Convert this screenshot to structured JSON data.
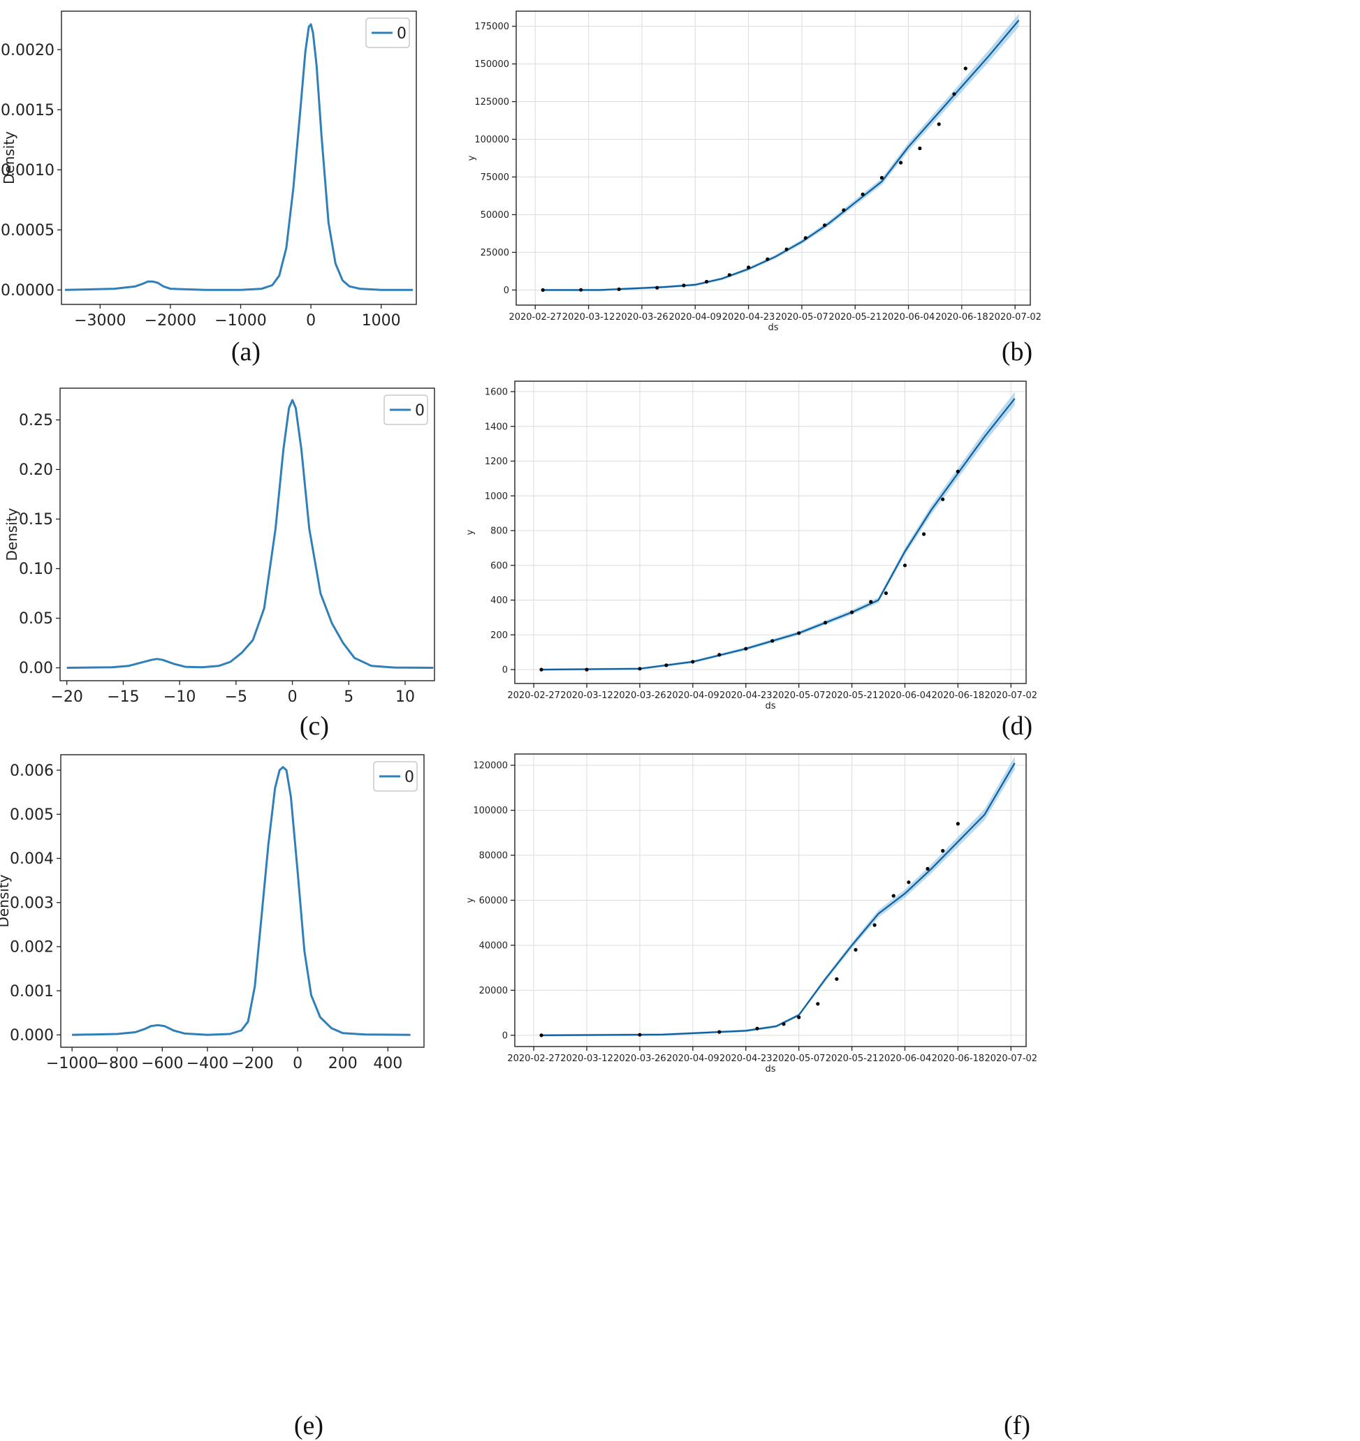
{
  "chart_data": [
    {
      "panel": "a",
      "type": "line",
      "caption": "(a)",
      "title": "",
      "xlabel": "",
      "ylabel": "Density",
      "xlim": [
        -3550,
        1500
      ],
      "ylim": [
        -0.00012,
        0.00232
      ],
      "xticks": [
        -3000,
        -2000,
        -1000,
        0,
        1000
      ],
      "xtick_labels": [
        "−3000",
        "−2000",
        "−1000",
        "0",
        "1000"
      ],
      "yticks": [
        0,
        0.0005,
        0.001,
        0.0015,
        0.002
      ],
      "ytick_labels": [
        "0.0000",
        "0.0005",
        "0.0010",
        "0.0015",
        "0.0020"
      ],
      "grid": false,
      "legend": "top-right",
      "series": [
        {
          "name": "0",
          "color": "#2f7fb8",
          "x": [
            -3500,
            -2800,
            -2500,
            -2400,
            -2320,
            -2250,
            -2180,
            -2100,
            -2000,
            -1500,
            -1000,
            -700,
            -550,
            -450,
            -350,
            -250,
            -150,
            -80,
            -30,
            0,
            30,
            80,
            150,
            250,
            350,
            450,
            550,
            700,
            1000,
            1450
          ],
          "y": [
            0,
            1e-05,
            3e-05,
            5e-05,
            7e-05,
            7e-05,
            6e-05,
            3e-05,
            1e-05,
            0,
            0,
            1e-05,
            4e-05,
            0.00012,
            0.00035,
            0.00085,
            0.0015,
            0.00198,
            0.00219,
            0.00221,
            0.00214,
            0.00187,
            0.00129,
            0.00056,
            0.00022,
            8e-05,
            3e-05,
            1e-05,
            0,
            0
          ]
        }
      ]
    },
    {
      "panel": "b",
      "type": "line",
      "caption": "(b)",
      "title": "",
      "xlabel": "ds",
      "ylabel": "y",
      "xlim": [
        "2020-02-22",
        "2020-07-06"
      ],
      "ylim": [
        -10000,
        185000
      ],
      "xticks": [
        "2020-02-27",
        "2020-03-12",
        "2020-03-26",
        "2020-04-09",
        "2020-04-23",
        "2020-05-07",
        "2020-05-21",
        "2020-06-04",
        "2020-06-18",
        "2020-07-02"
      ],
      "yticks": [
        0,
        25000,
        50000,
        75000,
        100000,
        125000,
        150000,
        175000
      ],
      "grid": true,
      "legend": "none",
      "forecast": {
        "color": "#0d5f9e",
        "band_color": "#9ccbe8",
        "x": [
          "2020-02-29",
          "2020-03-15",
          "2020-04-01",
          "2020-04-09",
          "2020-04-16",
          "2020-04-23",
          "2020-04-30",
          "2020-05-07",
          "2020-05-14",
          "2020-05-21",
          "2020-05-28",
          "2020-06-04",
          "2020-06-11",
          "2020-06-18",
          "2020-06-25",
          "2020-07-03"
        ],
        "y": [
          0,
          0,
          2000,
          3500,
          7500,
          14000,
          22000,
          32000,
          44000,
          58000,
          72000,
          95000,
          115000,
          135000,
          155000,
          179000
        ]
      },
      "observed": {
        "color": "#000000",
        "x": [
          "2020-02-29",
          "2020-03-10",
          "2020-03-20",
          "2020-03-30",
          "2020-04-06",
          "2020-04-12",
          "2020-04-18",
          "2020-04-23",
          "2020-04-28",
          "2020-05-03",
          "2020-05-08",
          "2020-05-13",
          "2020-05-18",
          "2020-05-23",
          "2020-05-28",
          "2020-06-02",
          "2020-06-07",
          "2020-06-12",
          "2020-06-16",
          "2020-06-19"
        ],
        "y": [
          0,
          100,
          500,
          1500,
          3000,
          5500,
          10000,
          15000,
          20500,
          27000,
          34500,
          43000,
          53000,
          63500,
          74500,
          84500,
          94000,
          110000,
          130000,
          147000
        ]
      }
    },
    {
      "panel": "c",
      "type": "line",
      "caption": "(c)",
      "title": "",
      "xlabel": "",
      "ylabel": "Density",
      "xlim": [
        -20.6,
        12.6
      ],
      "ylim": [
        -0.013,
        0.282
      ],
      "xticks": [
        -20,
        -15,
        -10,
        -5,
        0,
        5,
        10
      ],
      "xtick_labels": [
        "−20",
        "−15",
        "−10",
        "−5",
        "0",
        "5",
        "10"
      ],
      "yticks": [
        0,
        0.05,
        0.1,
        0.15,
        0.2,
        0.25
      ],
      "ytick_labels": [
        "0.00",
        "0.05",
        "0.10",
        "0.15",
        "0.20",
        "0.25"
      ],
      "grid": false,
      "legend": "top-right",
      "series": [
        {
          "name": "0",
          "color": "#2f7fb8",
          "x": [
            -20,
            -16,
            -14.5,
            -13.5,
            -12.5,
            -12,
            -11.5,
            -10.5,
            -9.5,
            -8,
            -6.5,
            -5.5,
            -4.5,
            -3.5,
            -2.5,
            -1.5,
            -0.8,
            -0.3,
            0,
            0.3,
            0.8,
            1.5,
            2.5,
            3.5,
            4.5,
            5.5,
            7,
            9,
            12.5
          ],
          "y": [
            0,
            0.0005,
            0.002,
            0.005,
            0.008,
            0.009,
            0.008,
            0.004,
            0.001,
            0.0005,
            0.002,
            0.006,
            0.015,
            0.028,
            0.06,
            0.14,
            0.22,
            0.262,
            0.27,
            0.262,
            0.22,
            0.14,
            0.075,
            0.045,
            0.025,
            0.01,
            0.002,
            0.0003,
            0
          ]
        }
      ]
    },
    {
      "panel": "d",
      "type": "line",
      "caption": "(d)",
      "title": "",
      "xlabel": "ds",
      "ylabel": "y",
      "xlim": [
        "2020-02-22",
        "2020-07-06"
      ],
      "ylim": [
        -80,
        1660
      ],
      "xticks": [
        "2020-02-27",
        "2020-03-12",
        "2020-03-26",
        "2020-04-09",
        "2020-04-23",
        "2020-05-07",
        "2020-05-21",
        "2020-06-04",
        "2020-06-18",
        "2020-07-02"
      ],
      "yticks": [
        0,
        200,
        400,
        600,
        800,
        1000,
        1200,
        1400,
        1600
      ],
      "grid": true,
      "legend": "none",
      "forecast": {
        "color": "#0d5f9e",
        "band_color": "#9ccbe8",
        "x": [
          "2020-02-29",
          "2020-03-26",
          "2020-04-09",
          "2020-04-23",
          "2020-05-07",
          "2020-05-21",
          "2020-05-28",
          "2020-06-04",
          "2020-06-11",
          "2020-06-18",
          "2020-06-25",
          "2020-07-03"
        ],
        "y": [
          0,
          5,
          45,
          120,
          210,
          330,
          400,
          680,
          920,
          1130,
          1340,
          1560
        ]
      },
      "observed": {
        "color": "#000000",
        "x": [
          "2020-02-29",
          "2020-03-12",
          "2020-03-26",
          "2020-04-02",
          "2020-04-09",
          "2020-04-16",
          "2020-04-23",
          "2020-04-30",
          "2020-05-07",
          "2020-05-14",
          "2020-05-21",
          "2020-05-26",
          "2020-05-30",
          "2020-06-04",
          "2020-06-09",
          "2020-06-14",
          "2020-06-18"
        ],
        "y": [
          0,
          0,
          5,
          25,
          45,
          85,
          120,
          165,
          210,
          270,
          330,
          390,
          440,
          600,
          780,
          980,
          1140
        ]
      }
    },
    {
      "panel": "e",
      "type": "line",
      "caption": "(e)",
      "title": "",
      "xlabel": "",
      "ylabel": "Density",
      "xlim": [
        -1050,
        560
      ],
      "ylim": [
        -0.00028,
        0.00635
      ],
      "xticks": [
        -1000,
        -800,
        -600,
        -400,
        -200,
        0,
        200,
        400
      ],
      "xtick_labels": [
        "−1000",
        "−800",
        "−600",
        "−400",
        "−200",
        "0",
        "200",
        "400"
      ],
      "yticks": [
        0,
        0.001,
        0.002,
        0.003,
        0.004,
        0.005,
        0.006
      ],
      "ytick_labels": [
        "0.000",
        "0.001",
        "0.002",
        "0.003",
        "0.004",
        "0.005",
        "0.006"
      ],
      "grid": false,
      "legend": "top-right",
      "series": [
        {
          "name": "0",
          "color": "#2f7fb8",
          "x": [
            -1000,
            -800,
            -720,
            -680,
            -650,
            -620,
            -590,
            -550,
            -500,
            -400,
            -300,
            -250,
            -220,
            -190,
            -160,
            -130,
            -100,
            -80,
            -65,
            -50,
            -30,
            0,
            30,
            60,
            100,
            150,
            200,
            300,
            500
          ],
          "y": [
            0,
            2e-05,
            6e-05,
            0.00013,
            0.0002,
            0.00022,
            0.0002,
            0.0001,
            3e-05,
            0,
            2e-05,
            0.0001,
            0.0003,
            0.0011,
            0.0027,
            0.0043,
            0.0056,
            0.006,
            0.00607,
            0.006,
            0.0054,
            0.0037,
            0.0019,
            0.0009,
            0.0004,
            0.00015,
            4e-05,
            1e-05,
            0
          ]
        }
      ]
    },
    {
      "panel": "f",
      "type": "line",
      "caption": "(f)",
      "title": "",
      "xlabel": "ds",
      "ylabel": "y",
      "xlim": [
        "2020-02-22",
        "2020-07-06"
      ],
      "ylim": [
        -5000,
        125000
      ],
      "xticks": [
        "2020-02-27",
        "2020-03-12",
        "2020-03-26",
        "2020-04-09",
        "2020-04-23",
        "2020-05-07",
        "2020-05-21",
        "2020-06-04",
        "2020-06-18",
        "2020-07-02"
      ],
      "yticks": [
        0,
        20000,
        40000,
        60000,
        80000,
        100000,
        120000
      ],
      "grid": true,
      "legend": "none",
      "forecast": {
        "color": "#0d5f9e",
        "band_color": "#9ccbe8",
        "x": [
          "2020-02-29",
          "2020-04-01",
          "2020-04-23",
          "2020-05-01",
          "2020-05-07",
          "2020-05-14",
          "2020-05-21",
          "2020-05-28",
          "2020-06-04",
          "2020-06-11",
          "2020-06-18",
          "2020-06-25",
          "2020-07-03"
        ],
        "y": [
          0,
          300,
          2000,
          4000,
          9000,
          25000,
          40000,
          54000,
          63000,
          74000,
          86000,
          98000,
          121000
        ]
      },
      "observed": {
        "color": "#000000",
        "x": [
          "2020-02-29",
          "2020-03-26",
          "2020-04-16",
          "2020-04-26",
          "2020-05-03",
          "2020-05-07",
          "2020-05-12",
          "2020-05-17",
          "2020-05-22",
          "2020-05-27",
          "2020-06-01",
          "2020-06-05",
          "2020-06-10",
          "2020-06-14",
          "2020-06-18"
        ],
        "y": [
          0,
          200,
          1500,
          3000,
          5000,
          8000,
          14000,
          25000,
          38000,
          49000,
          62000,
          68000,
          74000,
          82000,
          94000
        ]
      }
    }
  ]
}
